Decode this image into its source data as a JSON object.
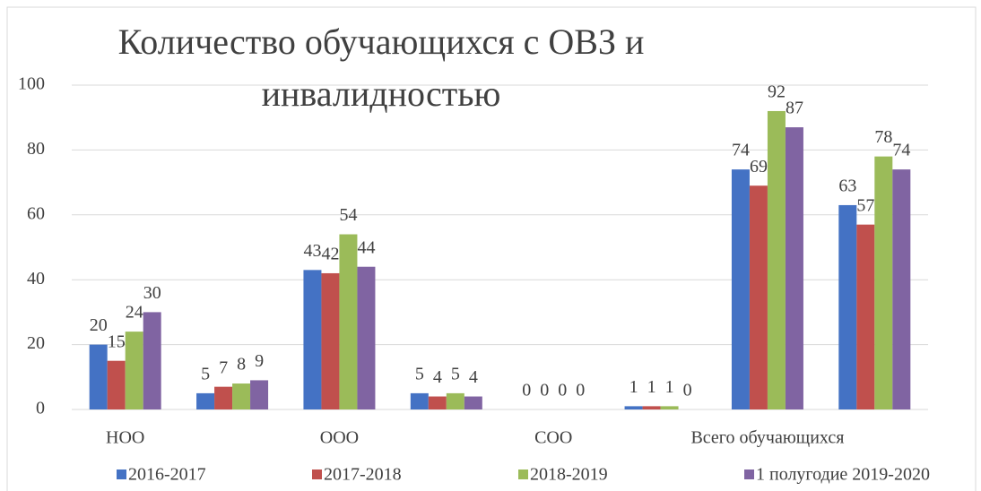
{
  "chart_data": {
    "type": "bar",
    "title": "Количество обучающихся с ОВЗ и инвалидностью",
    "categories": [
      "НОО",
      null,
      "ООО",
      null,
      "СОО",
      null,
      "Всего обучающихся",
      null
    ],
    "series": [
      {
        "name": "2016-2017",
        "color": "#4472c4",
        "values": [
          20,
          5,
          43,
          5,
          0,
          1,
          74,
          63
        ]
      },
      {
        "name": "2017-2018",
        "color": "#c0504d",
        "values": [
          15,
          7,
          42,
          4,
          0,
          1,
          69,
          57
        ]
      },
      {
        "name": "2018-2019",
        "color": "#9bbb59",
        "values": [
          24,
          8,
          54,
          5,
          0,
          1,
          92,
          78
        ]
      },
      {
        "name": "1 полугодие 2019-2020",
        "color": "#8064a2",
        "values": [
          30,
          9,
          44,
          4,
          0,
          0,
          87,
          74
        ]
      }
    ],
    "ylim": [
      0,
      100
    ],
    "yticks": [
      0,
      20,
      40,
      60,
      80,
      100
    ],
    "grid": true,
    "legend": "bottom"
  }
}
